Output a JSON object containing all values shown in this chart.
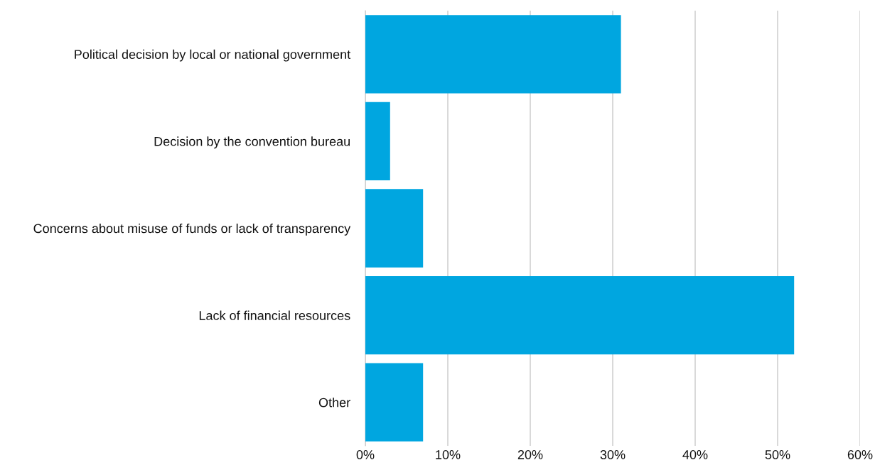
{
  "chart_data": {
    "type": "bar",
    "orientation": "horizontal",
    "categories": [
      "Political decision by local or national government",
      "Decision by the convention bureau",
      "Concerns about misuse of funds or lack of transparency",
      "Lack of financial resources",
      "Other"
    ],
    "values": [
      31,
      3,
      7,
      52,
      7
    ],
    "color": "#00a6e0",
    "xlim": [
      0,
      60
    ],
    "xticks": [
      {
        "value": 0,
        "label": "0%"
      },
      {
        "value": 10,
        "label": "10%"
      },
      {
        "value": 20,
        "label": "20%"
      },
      {
        "value": 30,
        "label": "30%"
      },
      {
        "value": 40,
        "label": "40%"
      },
      {
        "value": 50,
        "label": "50%"
      },
      {
        "value": 60,
        "label": "60%"
      }
    ],
    "grid": "x"
  }
}
